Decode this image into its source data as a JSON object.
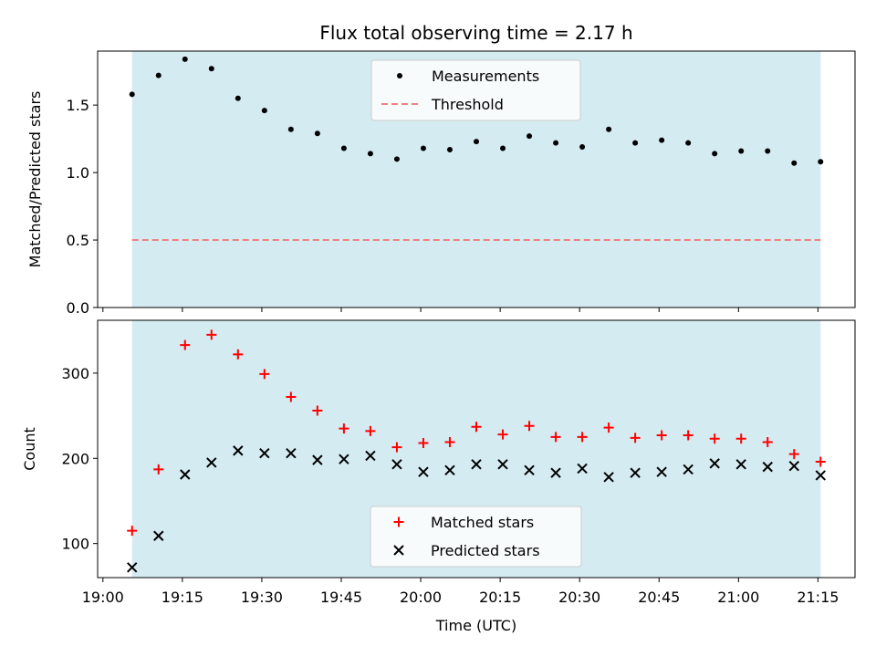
{
  "figure": {
    "title": "Flux total observing time = 2.17 h",
    "xlabel": "Time (UTC)",
    "xtick_labels": [
      "19:00",
      "19:15",
      "19:30",
      "19:45",
      "20:00",
      "20:15",
      "20:30",
      "20:45",
      "21:00",
      "21:15"
    ],
    "shade_color": "#d4ebf1"
  },
  "chart_data": [
    {
      "type": "scatter",
      "title": "Flux total observing time = 2.17 h",
      "ylabel": "Matched/Predicted stars",
      "xlabel": "",
      "x_unit": "minutes after 19:00 UTC",
      "xlim": [
        -1,
        142
      ],
      "ylim": [
        0,
        1.9
      ],
      "yticks": [
        0.0,
        0.5,
        1.0,
        1.5
      ],
      "ytick_labels": [
        "0.0",
        "0.5",
        "1.0",
        "1.5"
      ],
      "legend_position": "top-center",
      "shaded_span": {
        "x": [
          5.5,
          135.5
        ],
        "color": "#d4ebf1"
      },
      "series": [
        {
          "name": "Measurements",
          "marker": "dot",
          "color": "#000000",
          "x": [
            5.5,
            10.5,
            15.5,
            20.5,
            25.5,
            30.5,
            35.5,
            40.5,
            45.5,
            50.5,
            55.5,
            60.5,
            65.5,
            70.5,
            75.5,
            80.5,
            85.5,
            90.5,
            95.5,
            100.5,
            105.5,
            110.5,
            115.5,
            120.5,
            125.5,
            130.5,
            135.5
          ],
          "y": [
            1.58,
            1.72,
            1.84,
            1.77,
            1.55,
            1.46,
            1.32,
            1.29,
            1.18,
            1.14,
            1.1,
            1.18,
            1.17,
            1.23,
            1.18,
            1.27,
            1.22,
            1.19,
            1.32,
            1.22,
            1.24,
            1.22,
            1.14,
            1.16,
            1.16,
            1.07,
            1.08
          ]
        },
        {
          "name": "Threshold",
          "marker": "dashed-line",
          "color": "#f08080",
          "x": [
            5.5,
            135.5
          ],
          "y": [
            0.5,
            0.5
          ]
        }
      ]
    },
    {
      "type": "scatter",
      "title": "",
      "ylabel": "Count",
      "xlabel": "Time (UTC)",
      "x_unit": "minutes after 19:00 UTC",
      "xlim": [
        -1,
        142
      ],
      "ylim": [
        60,
        362
      ],
      "yticks": [
        100,
        200,
        300
      ],
      "ytick_labels": [
        "100",
        "200",
        "300"
      ],
      "legend_position": "bottom-center",
      "shaded_span": {
        "x": [
          5.5,
          135.5
        ],
        "color": "#d4ebf1"
      },
      "series": [
        {
          "name": "Matched stars",
          "marker": "plus",
          "color": "#ff0000",
          "x": [
            5.5,
            10.5,
            15.5,
            20.5,
            25.5,
            30.5,
            35.5,
            40.5,
            45.5,
            50.5,
            55.5,
            60.5,
            65.5,
            70.5,
            75.5,
            80.5,
            85.5,
            90.5,
            95.5,
            100.5,
            105.5,
            110.5,
            115.5,
            120.5,
            125.5,
            130.5,
            135.5
          ],
          "y": [
            115,
            187,
            333,
            345,
            322,
            299,
            272,
            256,
            235,
            232,
            213,
            218,
            219,
            237,
            228,
            238,
            225,
            225,
            236,
            224,
            227,
            227,
            223,
            223,
            219,
            205,
            196
          ]
        },
        {
          "name": "Predicted stars",
          "marker": "x",
          "color": "#000000",
          "x": [
            5.5,
            10.5,
            15.5,
            20.5,
            25.5,
            30.5,
            35.5,
            40.5,
            45.5,
            50.5,
            55.5,
            60.5,
            65.5,
            70.5,
            75.5,
            80.5,
            85.5,
            90.5,
            95.5,
            100.5,
            105.5,
            110.5,
            115.5,
            120.5,
            125.5,
            130.5,
            135.5
          ],
          "y": [
            72,
            109,
            181,
            195,
            209,
            206,
            206,
            198,
            199,
            203,
            193,
            184,
            186,
            193,
            193,
            186,
            183,
            188,
            178,
            183,
            184,
            187,
            194,
            193,
            190,
            191,
            180
          ]
        }
      ]
    }
  ]
}
